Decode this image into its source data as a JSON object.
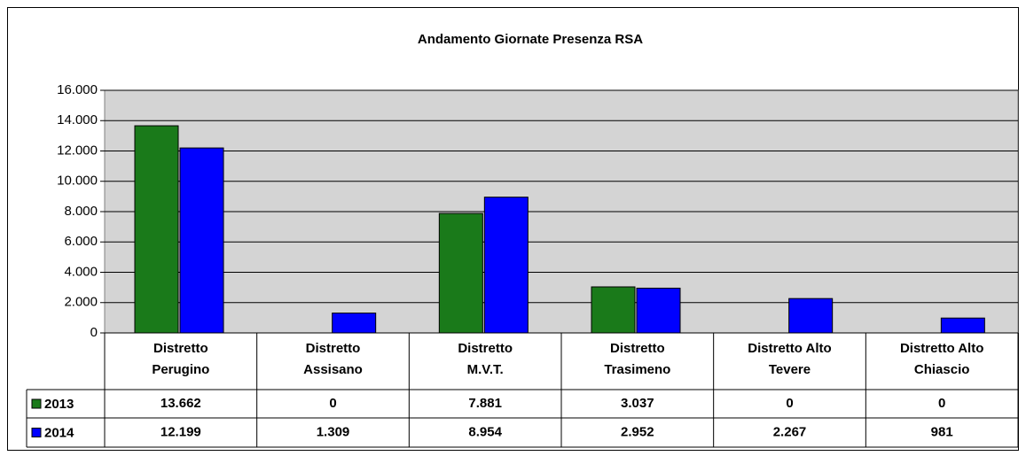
{
  "chart_data": {
    "type": "bar",
    "title": "Andamento Giornate Presenza RSA",
    "categories": [
      [
        "Distretto",
        "Perugino"
      ],
      [
        "Distretto",
        "Assisano"
      ],
      [
        "Distretto",
        "M.V.T."
      ],
      [
        "Distretto",
        "Trasimeno"
      ],
      [
        "Distretto Alto",
        "Tevere"
      ],
      [
        "Distretto Alto",
        "Chiascio"
      ]
    ],
    "series": [
      {
        "name": "2013",
        "color": "#1a7a1a",
        "values": [
          13662,
          0,
          7881,
          3037,
          0,
          0
        ],
        "value_labels": [
          "13.662",
          "0",
          "7.881",
          "3.037",
          "0",
          "0"
        ]
      },
      {
        "name": "2014",
        "color": "#0000ff",
        "values": [
          12199,
          1309,
          8954,
          2952,
          2267,
          981
        ],
        "value_labels": [
          "12.199",
          "1.309",
          "8.954",
          "2.952",
          "2.267",
          "981"
        ]
      }
    ],
    "ylim": [
      0,
      16000
    ],
    "yticks": [
      0,
      {
        "value": 2000,
        "label": "2.000"
      },
      {
        "value": 4000,
        "label": "4.000"
      },
      {
        "value": 6000,
        "label": "6.000"
      },
      {
        "value": 8000,
        "label": "8.000"
      },
      {
        "value": 10000,
        "label": "10.000"
      },
      {
        "value": 12000,
        "label": "12.000"
      },
      {
        "value": 14000,
        "label": "14.000"
      },
      {
        "value": 16000,
        "label": "16.000"
      }
    ],
    "grid": true
  }
}
